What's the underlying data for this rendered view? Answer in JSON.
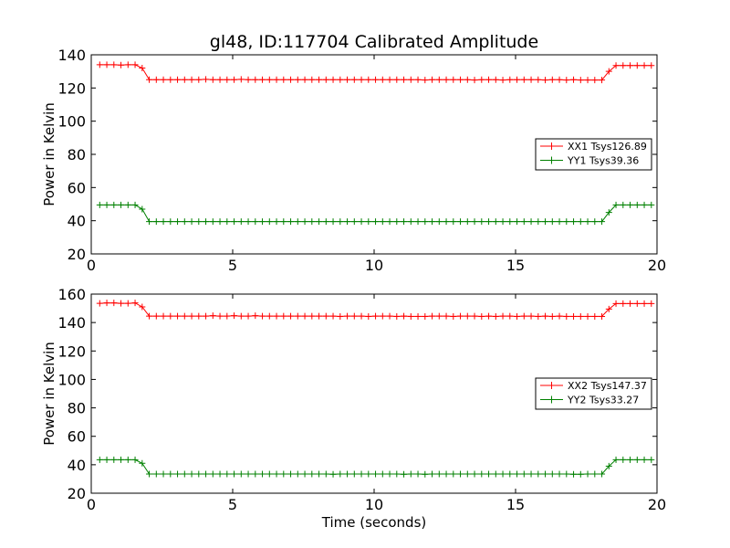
{
  "figure": {
    "title": "gl48, ID:117704 Calibrated Amplitude",
    "xlabel": "Time (seconds)"
  },
  "chart_data": [
    {
      "type": "line",
      "title": "gl48, ID:117704 Calibrated Amplitude",
      "xlabel": "",
      "ylabel": "Power in Kelvin",
      "xlim": [
        0,
        20
      ],
      "ylim": [
        20,
        140
      ],
      "xticks": [
        "0",
        "5",
        "10",
        "15",
        "20"
      ],
      "yticks": [
        "20",
        "40",
        "60",
        "80",
        "100",
        "120",
        "140"
      ],
      "grid": false,
      "legend_position": "center-right",
      "series": [
        {
          "name": "XX1 Tsys126.89",
          "color": "#ff0000",
          "x": [
            0.3,
            0.55,
            0.8,
            1.05,
            1.3,
            1.55,
            1.8,
            2.05,
            2.3,
            2.55,
            2.8,
            3.05,
            3.3,
            3.55,
            3.8,
            4.05,
            4.3,
            4.55,
            4.8,
            5.05,
            5.3,
            5.55,
            5.8,
            6.05,
            6.3,
            6.55,
            6.8,
            7.05,
            7.3,
            7.55,
            7.8,
            8.05,
            8.3,
            8.55,
            8.8,
            9.05,
            9.3,
            9.55,
            9.8,
            10.05,
            10.3,
            10.55,
            10.8,
            11.05,
            11.3,
            11.55,
            11.8,
            12.05,
            12.3,
            12.55,
            12.8,
            13.05,
            13.3,
            13.55,
            13.8,
            14.05,
            14.3,
            14.55,
            14.8,
            15.05,
            15.3,
            15.55,
            15.8,
            16.05,
            16.3,
            16.55,
            16.8,
            17.05,
            17.3,
            17.55,
            17.8,
            18.05,
            18.3,
            18.55,
            18.8,
            19.05,
            19.3,
            19.55,
            19.8
          ],
          "y": [
            134,
            134,
            134,
            133.8,
            134,
            134,
            132,
            125,
            125,
            125,
            125,
            125,
            125,
            125,
            125,
            125.2,
            125,
            125,
            125,
            125,
            125.2,
            125,
            125,
            125,
            125,
            125,
            125,
            125,
            125,
            125,
            125,
            125,
            125,
            125,
            125,
            125,
            125,
            125,
            125,
            125,
            125,
            125,
            125,
            125,
            125,
            125,
            124.8,
            125,
            125,
            125,
            125,
            125,
            125,
            124.8,
            125,
            125,
            125,
            124.8,
            125,
            125,
            125,
            125,
            125,
            124.8,
            125,
            125,
            124.8,
            125,
            124.8,
            124.8,
            124.8,
            124.8,
            130,
            133.5,
            133.5,
            133.5,
            133.5,
            133.5,
            133.5
          ]
        },
        {
          "name": "YY1 Tsys39.36",
          "color": "#008000",
          "x": [
            0.3,
            0.55,
            0.8,
            1.05,
            1.3,
            1.55,
            1.8,
            2.05,
            2.3,
            2.55,
            2.8,
            3.05,
            3.3,
            3.55,
            3.8,
            4.05,
            4.3,
            4.55,
            4.8,
            5.05,
            5.3,
            5.55,
            5.8,
            6.05,
            6.3,
            6.55,
            6.8,
            7.05,
            7.3,
            7.55,
            7.8,
            8.05,
            8.3,
            8.55,
            8.8,
            9.05,
            9.3,
            9.55,
            9.8,
            10.05,
            10.3,
            10.55,
            10.8,
            11.05,
            11.3,
            11.55,
            11.8,
            12.05,
            12.3,
            12.55,
            12.8,
            13.05,
            13.3,
            13.55,
            13.8,
            14.05,
            14.3,
            14.55,
            14.8,
            15.05,
            15.3,
            15.55,
            15.8,
            16.05,
            16.3,
            16.55,
            16.8,
            17.05,
            17.3,
            17.55,
            17.8,
            18.05,
            18.3,
            18.55,
            18.8,
            19.05,
            19.3,
            19.55,
            19.8
          ],
          "y": [
            49.5,
            49.5,
            49.5,
            49.5,
            49.5,
            49.5,
            47,
            39.5,
            39.5,
            39.5,
            39.5,
            39.5,
            39.5,
            39.5,
            39.5,
            39.5,
            39.5,
            39.5,
            39.5,
            39.5,
            39.5,
            39.5,
            39.5,
            39.5,
            39.5,
            39.5,
            39.5,
            39.5,
            39.5,
            39.5,
            39.5,
            39.5,
            39.5,
            39.5,
            39.5,
            39.5,
            39.5,
            39.5,
            39.5,
            39.5,
            39.5,
            39.5,
            39.5,
            39.5,
            39.5,
            39.5,
            39.5,
            39.5,
            39.5,
            39.5,
            39.5,
            39.5,
            39.5,
            39.5,
            39.5,
            39.5,
            39.5,
            39.5,
            39.5,
            39.5,
            39.5,
            39.5,
            39.5,
            39.5,
            39.5,
            39.5,
            39.5,
            39.5,
            39.5,
            39.5,
            39.5,
            39.5,
            45,
            49.5,
            49.5,
            49.5,
            49.5,
            49.5,
            49.5
          ]
        }
      ]
    },
    {
      "type": "line",
      "title": "",
      "xlabel": "Time (seconds)",
      "ylabel": "Power in Kelvin",
      "xlim": [
        0,
        20
      ],
      "ylim": [
        20,
        160
      ],
      "xticks": [
        "0",
        "5",
        "10",
        "15",
        "20"
      ],
      "yticks": [
        "20",
        "40",
        "60",
        "80",
        "100",
        "120",
        "140",
        "160"
      ],
      "grid": false,
      "legend_position": "center-right",
      "series": [
        {
          "name": "XX2 Tsys147.37",
          "color": "#ff0000",
          "x": [
            0.3,
            0.55,
            0.8,
            1.05,
            1.3,
            1.55,
            1.8,
            2.05,
            2.3,
            2.55,
            2.8,
            3.05,
            3.3,
            3.55,
            3.8,
            4.05,
            4.3,
            4.55,
            4.8,
            5.05,
            5.3,
            5.55,
            5.8,
            6.05,
            6.3,
            6.55,
            6.8,
            7.05,
            7.3,
            7.55,
            7.8,
            8.05,
            8.3,
            8.55,
            8.8,
            9.05,
            9.3,
            9.55,
            9.8,
            10.05,
            10.3,
            10.55,
            10.8,
            11.05,
            11.3,
            11.55,
            11.8,
            12.05,
            12.3,
            12.55,
            12.8,
            13.05,
            13.3,
            13.55,
            13.8,
            14.05,
            14.3,
            14.55,
            14.8,
            15.05,
            15.3,
            15.55,
            15.8,
            16.05,
            16.3,
            16.55,
            16.8,
            17.05,
            17.3,
            17.55,
            17.8,
            18.05,
            18.3,
            18.55,
            18.8,
            19.05,
            19.3,
            19.55,
            19.8
          ],
          "y": [
            153.5,
            153.8,
            153.8,
            153.5,
            153.5,
            153.8,
            151,
            144.5,
            144.5,
            144.5,
            144.5,
            144.5,
            144.5,
            144.5,
            144.5,
            144.5,
            144.8,
            144.5,
            144.5,
            144.8,
            144.5,
            144.5,
            144.8,
            144.5,
            144.5,
            144.5,
            144.5,
            144.5,
            144.5,
            144.5,
            144.5,
            144.5,
            144.5,
            144.5,
            144.3,
            144.5,
            144.5,
            144.5,
            144.3,
            144.5,
            144.5,
            144.5,
            144.3,
            144.5,
            144.3,
            144.3,
            144.3,
            144.5,
            144.5,
            144.5,
            144.3,
            144.5,
            144.5,
            144.5,
            144.3,
            144.5,
            144.3,
            144.5,
            144.5,
            144.3,
            144.5,
            144.5,
            144.3,
            144.5,
            144.3,
            144.5,
            144.3,
            144.3,
            144.3,
            144.3,
            144.3,
            144.3,
            149.5,
            153.3,
            153.3,
            153.3,
            153.3,
            153.3,
            153.3
          ]
        },
        {
          "name": "YY2 Tsys33.27",
          "color": "#008000",
          "x": [
            0.3,
            0.55,
            0.8,
            1.05,
            1.3,
            1.55,
            1.8,
            2.05,
            2.3,
            2.55,
            2.8,
            3.05,
            3.3,
            3.55,
            3.8,
            4.05,
            4.3,
            4.55,
            4.8,
            5.05,
            5.3,
            5.55,
            5.8,
            6.05,
            6.3,
            6.55,
            6.8,
            7.05,
            7.3,
            7.55,
            7.8,
            8.05,
            8.3,
            8.55,
            8.8,
            9.05,
            9.3,
            9.55,
            9.8,
            10.05,
            10.3,
            10.55,
            10.8,
            11.05,
            11.3,
            11.55,
            11.8,
            12.05,
            12.3,
            12.55,
            12.8,
            13.05,
            13.3,
            13.55,
            13.8,
            14.05,
            14.3,
            14.55,
            14.8,
            15.05,
            15.3,
            15.55,
            15.8,
            16.05,
            16.3,
            16.55,
            16.8,
            17.05,
            17.3,
            17.55,
            17.8,
            18.05,
            18.3,
            18.55,
            18.8,
            19.05,
            19.3,
            19.55,
            19.8
          ],
          "y": [
            43.5,
            43.5,
            43.5,
            43.5,
            43.5,
            43.5,
            41,
            33.5,
            33.5,
            33.5,
            33.5,
            33.5,
            33.5,
            33.5,
            33.5,
            33.5,
            33.5,
            33.5,
            33.5,
            33.5,
            33.5,
            33.5,
            33.5,
            33.5,
            33.5,
            33.5,
            33.5,
            33.5,
            33.5,
            33.5,
            33.5,
            33.5,
            33.5,
            33.3,
            33.5,
            33.5,
            33.5,
            33.5,
            33.5,
            33.5,
            33.5,
            33.5,
            33.5,
            33.3,
            33.5,
            33.5,
            33.3,
            33.5,
            33.5,
            33.5,
            33.5,
            33.5,
            33.5,
            33.5,
            33.5,
            33.5,
            33.5,
            33.5,
            33.5,
            33.5,
            33.5,
            33.5,
            33.5,
            33.5,
            33.5,
            33.5,
            33.5,
            33.3,
            33.3,
            33.5,
            33.5,
            33.5,
            39,
            43.5,
            43.5,
            43.5,
            43.5,
            43.5,
            43.5
          ]
        }
      ]
    }
  ]
}
